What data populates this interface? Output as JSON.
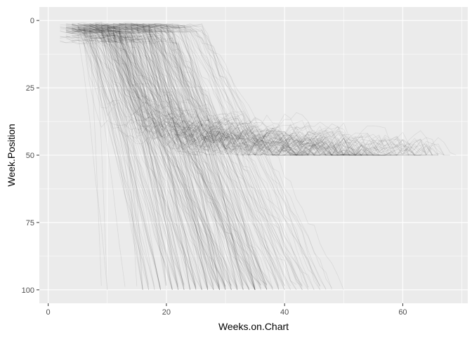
{
  "chart_data": {
    "type": "line",
    "title": "",
    "xlabel": "Weeks.on.Chart",
    "ylabel": "Week.Position",
    "xlim": [
      -1.5,
      71
    ],
    "ylim": [
      0,
      100
    ],
    "y_reversed": true,
    "x_ticks": [
      0,
      20,
      40,
      60
    ],
    "y_ticks": [
      0,
      25,
      50,
      75,
      100
    ],
    "x_tick_labels": [
      "0",
      "20",
      "40",
      "60"
    ],
    "y_tick_labels": [
      "0",
      "25",
      "50",
      "75",
      "100"
    ],
    "grid": true,
    "panel_background": "#ebebeb",
    "grid_color": "#ffffff",
    "line_color": "#000000",
    "line_alpha": 0.08,
    "series_groups": [
      {
        "name": "",
        "count": 220,
        "start_x": [
          2,
          20
        ],
        "peak": [
          1,
          4
        ],
        "drop_to": 100,
        "drop_weeks": [
          12,
          30
        ]
      },
      {
        "name": "",
        "count": 90,
        "start_x": [
          2,
          12
        ],
        "peak": [
          1,
          8
        ],
        "plateau_at": 50,
        "plateau_until": [
          40,
          68
        ]
      },
      {
        "name": "",
        "count": 25,
        "start_x": [
          2,
          10
        ],
        "peak": [
          1,
          6
        ],
        "drop_to": 100,
        "drop_weeks": [
          6,
          20
        ]
      }
    ]
  }
}
